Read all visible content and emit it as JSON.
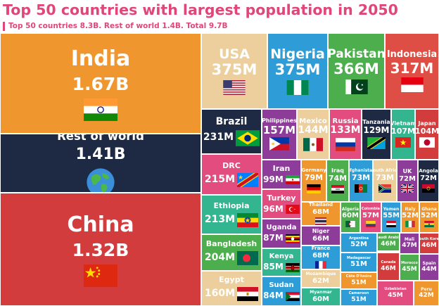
{
  "title": "Top 50 countries with largest population in 2050",
  "subtitle": "Top 50 countries 8.3B. Rest of world 1.4B. Total 9.7B",
  "chart_data": {
    "type": "treemap",
    "title": "Top 50 countries with largest population in 2050",
    "subtitle": "Top 50 countries 8.3B. Rest of world 1.4B. Total 9.7B",
    "items": [
      {
        "name": "India",
        "label": "1.67B",
        "value": 1670,
        "color": "#f0962f",
        "flag": "india-flag"
      },
      {
        "name": "Rest of world",
        "label": "1.41B",
        "value": 1410,
        "color": "#1e2943",
        "flag": "globe"
      },
      {
        "name": "China",
        "label": "1.32B",
        "value": 1320,
        "color": "#d23c3c",
        "flag": "china-flag"
      },
      {
        "name": "USA",
        "label": "375M",
        "value": 375,
        "color": "#edcf9e",
        "flag": "usa-flag"
      },
      {
        "name": "Nigeria",
        "label": "375M",
        "value": 375,
        "color": "#2e9cd6",
        "flag": "nigeria-flag"
      },
      {
        "name": "Pakistan",
        "label": "366M",
        "value": 366,
        "color": "#4cae4c",
        "flag": "pakistan-flag"
      },
      {
        "name": "Indonesia",
        "label": "317M",
        "value": 317,
        "color": "#df4e44",
        "flag": "indonesia-flag"
      },
      {
        "name": "Brazil",
        "label": "231M",
        "value": 231,
        "color": "#1e2943",
        "flag": "brazil-flag"
      },
      {
        "name": "Philippines",
        "label": "157M",
        "value": 157,
        "color": "#8e3c99",
        "flag": "philippines-flag"
      },
      {
        "name": "Mexico",
        "label": "144M",
        "value": 144,
        "color": "#edcf9e",
        "flag": "mexico-flag"
      },
      {
        "name": "Russia",
        "label": "133M",
        "value": 133,
        "color": "#e24c7e",
        "flag": "russia-flag"
      },
      {
        "name": "Tanzania",
        "label": "129M",
        "value": 129,
        "color": "#1e2943",
        "flag": "tanzania-flag"
      },
      {
        "name": "Vietnam",
        "label": "107M",
        "value": 107,
        "color": "#33b58f",
        "flag": "vietnam-flag"
      },
      {
        "name": "Japan",
        "label": "104M",
        "value": 104,
        "color": "#d23c3c",
        "flag": "japan-flag"
      },
      {
        "name": "DRC",
        "label": "215M",
        "value": 215,
        "color": "#e24c7e",
        "flag": "drc-flag"
      },
      {
        "name": "Ethiopia",
        "label": "213M",
        "value": 213,
        "color": "#33b58f",
        "flag": "ethiopia-flag"
      },
      {
        "name": "Bangladesh",
        "label": "204M",
        "value": 204,
        "color": "#4cae4c",
        "flag": "bangladesh-flag"
      },
      {
        "name": "Egypt",
        "label": "160M",
        "value": 160,
        "color": "#edcf9e",
        "flag": "egypt-flag"
      },
      {
        "name": "Iran",
        "label": "99M",
        "value": 99,
        "color": "#8e3c99",
        "flag": "iran-flag"
      },
      {
        "name": "Turkey",
        "label": "96M",
        "value": 96,
        "color": "#e24c7e",
        "flag": "turkey-flag"
      },
      {
        "name": "Uganda",
        "label": "87M",
        "value": 87,
        "color": "#8e3c99",
        "flag": "uganda-flag"
      },
      {
        "name": "Kenya",
        "label": "85M",
        "value": 85,
        "color": "#33b58f",
        "flag": "kenya-flag"
      },
      {
        "name": "Sudan",
        "label": "84M",
        "value": 84,
        "color": "#2e9cd6",
        "flag": "sudan-flag"
      },
      {
        "name": "Germany",
        "label": "79M",
        "value": 79,
        "color": "#f0962f",
        "flag": "germany-flag"
      },
      {
        "name": "Iraq",
        "label": "74M",
        "value": 74,
        "color": "#4cae4c",
        "flag": "iraq-flag"
      },
      {
        "name": "Afghanistan",
        "label": "73M",
        "value": 73,
        "color": "#2e9cd6",
        "flag": "afghanistan-flag"
      },
      {
        "name": "South Africa",
        "label": "73M",
        "value": 73,
        "color": "#edcf9e",
        "flag": "south-africa-flag"
      },
      {
        "name": "UK",
        "label": "72M",
        "value": 72,
        "color": "#8e3c99",
        "flag": "uk-flag"
      },
      {
        "name": "Angola",
        "label": "72M",
        "value": 72,
        "color": "#1e2943",
        "flag": "angola-flag"
      },
      {
        "name": "Thailand",
        "label": "68M",
        "value": 68,
        "color": "#f0962f",
        "flag": "thailand-flag"
      },
      {
        "name": "Niger",
        "label": "66M",
        "value": 66,
        "color": "#8e3c99",
        "flag": "niger-flag"
      },
      {
        "name": "France",
        "label": "68M",
        "value": 68,
        "color": "#2e9cd6",
        "flag": "france-flag"
      },
      {
        "name": "Mozambique",
        "label": "62M",
        "value": 62,
        "color": "#edcf9e",
        "flag": "mozambique-flag"
      },
      {
        "name": "Myanmar",
        "label": "60M",
        "value": 60,
        "color": "#33b58f",
        "flag": "myanmar-flag"
      },
      {
        "name": "Algeria",
        "label": "60M",
        "value": 60,
        "color": "#4cae4c",
        "flag": "algeria-flag"
      },
      {
        "name": "Colombia",
        "label": "57M",
        "value": 57,
        "color": "#e24c7e",
        "flag": "colombia-flag"
      },
      {
        "name": "Yemen",
        "label": "55M",
        "value": 55,
        "color": "#2e9cd6",
        "flag": "yemen-flag"
      },
      {
        "name": "Italy",
        "label": "52M",
        "value": 52,
        "color": "#f0962f",
        "flag": "italy-flag"
      },
      {
        "name": "Ghana",
        "label": "52M",
        "value": 52,
        "color": "#f0962f",
        "flag": "ghana-flag"
      },
      {
        "name": "Argentina",
        "label": "52M",
        "value": 52,
        "color": "#2e9cd6",
        "flag": "argentina-flag"
      },
      {
        "name": "Saudi Arabia",
        "label": "46M",
        "value": 46,
        "color": "#4cae4c",
        "flag": "saudi-arabia-flag"
      },
      {
        "name": "Mali",
        "label": "47M",
        "value": 47,
        "color": "#8e3c99",
        "flag": "mali-flag"
      },
      {
        "name": "South Korea",
        "label": "46M",
        "value": 46,
        "color": "#d23c3c",
        "flag": "south-korea-flag"
      },
      {
        "name": "Madagascar",
        "label": "51M",
        "value": 51,
        "color": "#2e9cd6",
        "flag": "madagascar-flag"
      },
      {
        "name": "Côte D'Ivoire",
        "label": "51M",
        "value": 51,
        "color": "#f0962f",
        "flag": "cote-divoire-flag"
      },
      {
        "name": "Canada",
        "label": "46M",
        "value": 46,
        "color": "#d23c3c",
        "flag": "canada-flag"
      },
      {
        "name": "Morocco",
        "label": "45M",
        "value": 45,
        "color": "#4cae4c",
        "flag": "morocco-flag"
      },
      {
        "name": "Spain",
        "label": "44M",
        "value": 44,
        "color": "#8e3c99",
        "flag": "spain-flag"
      },
      {
        "name": "Cameroon",
        "label": "51M",
        "value": 51,
        "color": "#2e9cd6",
        "flag": "cameroon-flag"
      },
      {
        "name": "Uzbekistan",
        "label": "45M",
        "value": 45,
        "color": "#e24c7e",
        "flag": "uzbekistan-flag"
      },
      {
        "name": "Peru",
        "label": "42M",
        "value": 42,
        "color": "#f0962f",
        "flag": "peru-flag"
      }
    ]
  }
}
